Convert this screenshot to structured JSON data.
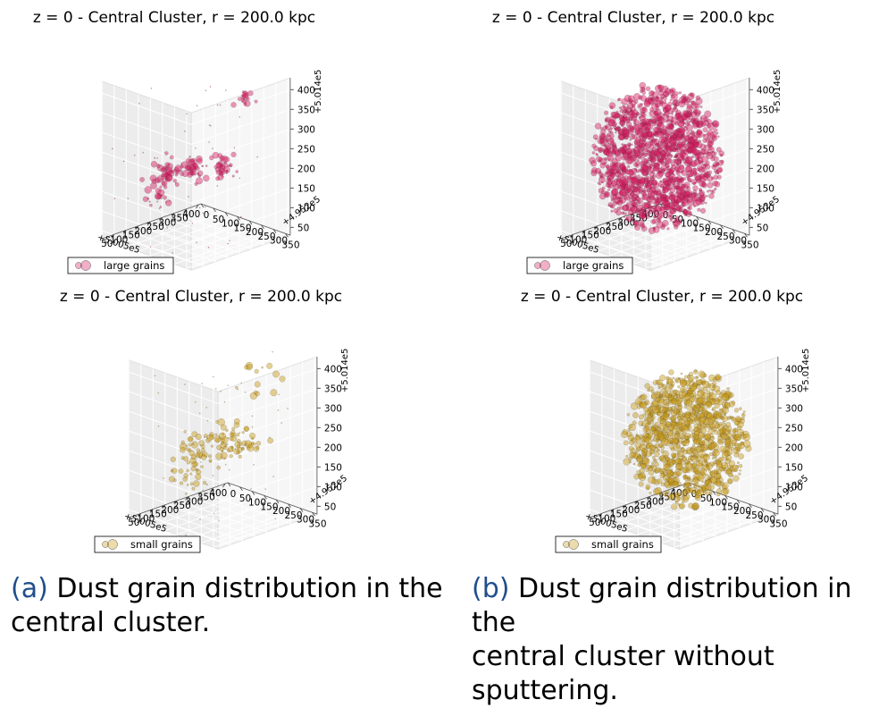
{
  "chart_data": [
    {
      "type": "scatter3d",
      "title": "z = 0 - Central Cluster, r = 200.0 kpc",
      "legend": "large grains",
      "legend_placement": "lower-left",
      "color": "#d81b60",
      "style": "clumps",
      "x_ticks": [
        "50",
        "100",
        "150",
        "200",
        "250",
        "300",
        "350",
        "400"
      ],
      "x_offset": "+5.005e5",
      "y_ticks": [
        "0",
        "50",
        "100",
        "150",
        "200",
        "250",
        "300",
        "350"
      ],
      "y_offset": "+4.952e5",
      "z_ticks": [
        "50",
        "100",
        "150",
        "200",
        "250",
        "300",
        "350",
        "400"
      ],
      "z_offset": "+5.014e5",
      "clusters": [
        {
          "x": 130,
          "y": 150,
          "z": 200,
          "n": 45,
          "spread": 22
        },
        {
          "x": 190,
          "y": 180,
          "z": 210,
          "n": 35,
          "spread": 18
        },
        {
          "x": 300,
          "y": 200,
          "z": 190,
          "n": 40,
          "spread": 20
        },
        {
          "x": 170,
          "y": 60,
          "z": 120,
          "n": 25,
          "spread": 30
        },
        {
          "x": 330,
          "y": 250,
          "z": 370,
          "n": 15,
          "spread": 15
        }
      ]
    },
    {
      "type": "scatter3d",
      "title": "z = 0 - Central Cluster, r = 200.0 kpc",
      "legend": "large grains",
      "legend_placement": "lower-left",
      "color": "#d81b60",
      "style": "sphere",
      "x_ticks": [
        "50",
        "100",
        "150",
        "200",
        "250",
        "300",
        "350",
        "400"
      ],
      "x_offset": "+5.005e5",
      "y_ticks": [
        "0",
        "50",
        "100",
        "150",
        "200",
        "250",
        "300",
        "350"
      ],
      "y_offset": "+4.952e5",
      "z_ticks": [
        "50",
        "100",
        "150",
        "200",
        "250",
        "300",
        "350",
        "400"
      ],
      "z_offset": "+5.014e5",
      "sphere": {
        "x": 225,
        "y": 175,
        "z": 225,
        "radius": 200,
        "n": 1500
      }
    },
    {
      "type": "scatter3d",
      "title": "z = 0 - Central Cluster, r = 200.0 kpc",
      "legend": "small grains",
      "legend_placement": "lower-left",
      "color": "#c89a14",
      "style": "clumps",
      "x_ticks": [
        "50",
        "100",
        "150",
        "200",
        "250",
        "300",
        "350",
        "400"
      ],
      "x_offset": "+5.005e5",
      "y_ticks": [
        "0",
        "50",
        "100",
        "150",
        "200",
        "250",
        "300",
        "350"
      ],
      "y_offset": "+4.952e5",
      "z_ticks": [
        "50",
        "100",
        "150",
        "200",
        "250",
        "300",
        "350",
        "400"
      ],
      "z_offset": "+5.014e5",
      "clusters": [
        {
          "x": 140,
          "y": 150,
          "z": 200,
          "n": 40,
          "spread": 30
        },
        {
          "x": 220,
          "y": 180,
          "z": 215,
          "n": 40,
          "spread": 28
        },
        {
          "x": 290,
          "y": 190,
          "z": 200,
          "n": 30,
          "spread": 30
        },
        {
          "x": 180,
          "y": 80,
          "z": 120,
          "n": 25,
          "spread": 35
        },
        {
          "x": 300,
          "y": 250,
          "z": 360,
          "n": 15,
          "spread": 40
        }
      ]
    },
    {
      "type": "scatter3d",
      "title": "z = 0 - Central Cluster, r = 200.0 kpc",
      "legend": "small grains",
      "legend_placement": "lower-left",
      "color": "#c89a14",
      "style": "sphere",
      "x_ticks": [
        "50",
        "100",
        "150",
        "200",
        "250",
        "300",
        "350",
        "400"
      ],
      "x_offset": "+5.005e5",
      "y_ticks": [
        "0",
        "50",
        "100",
        "150",
        "200",
        "250",
        "300",
        "350"
      ],
      "y_offset": "+4.952e5",
      "z_ticks": [
        "50",
        "100",
        "150",
        "200",
        "250",
        "300",
        "350",
        "400"
      ],
      "z_offset": "+5.014e5",
      "sphere": {
        "x": 225,
        "y": 175,
        "z": 220,
        "radius": 190,
        "n": 1100
      }
    }
  ],
  "captions": [
    {
      "label": "(a)",
      "text_line1": " Dust grain distribution in the",
      "text_line2": "central cluster."
    },
    {
      "label": "(b)",
      "text_line1": " Dust grain distribution in the",
      "text_line2": "central cluster without sputtering."
    }
  ]
}
